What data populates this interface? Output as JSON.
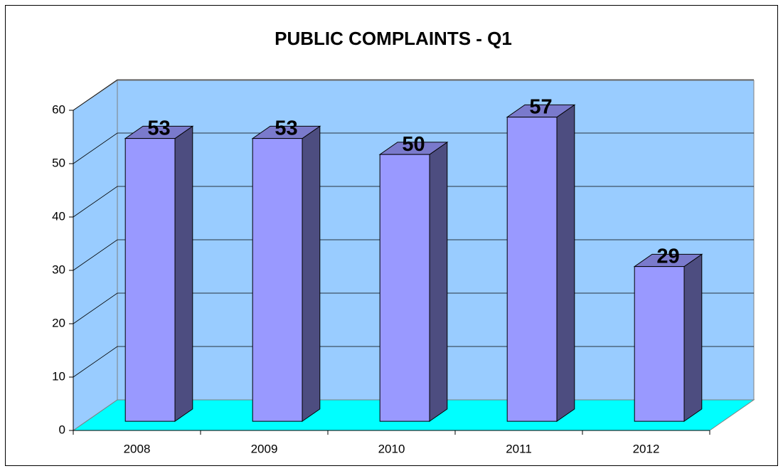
{
  "chart_data": {
    "type": "bar",
    "title": "PUBLIC COMPLAINTS - Q1",
    "categories": [
      "2008",
      "2009",
      "2010",
      "2011",
      "2012"
    ],
    "values": [
      53,
      53,
      50,
      57,
      29
    ],
    "color": "#9999ff",
    "ylim": [
      0,
      60
    ],
    "yticks": [
      0,
      10,
      20,
      30,
      40,
      50,
      60
    ],
    "grid": true
  }
}
